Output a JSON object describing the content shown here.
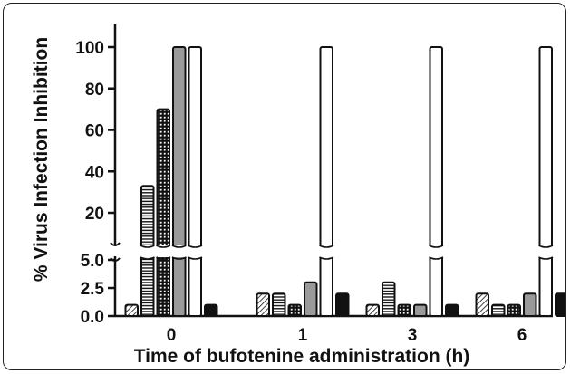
{
  "chart_data": {
    "type": "bar",
    "xlabel": "Time of bufotenine administration (h)",
    "ylabel": "% Virus Infection Inhibition",
    "categories": [
      "0",
      "1",
      "3",
      "6"
    ],
    "axis_break": {
      "lower": [
        0,
        5
      ],
      "upper": [
        5,
        110
      ]
    },
    "lower_ticks": [
      "0.0",
      "2.5",
      "5.0"
    ],
    "upper_ticks": [
      "20",
      "40",
      "60",
      "80",
      "100"
    ],
    "grid": false,
    "legend": "none",
    "series": [
      {
        "pattern": "diagonal-hatch",
        "values": [
          1,
          2,
          1,
          2
        ]
      },
      {
        "pattern": "horizontal-stripes",
        "values": [
          33,
          2,
          3,
          1
        ]
      },
      {
        "pattern": "dotted-dark",
        "values": [
          70,
          1,
          1,
          1
        ]
      },
      {
        "pattern": "gray",
        "values": [
          100,
          3,
          1,
          2
        ]
      },
      {
        "pattern": "white",
        "values": [
          100,
          100,
          100,
          100
        ]
      },
      {
        "pattern": "black",
        "values": [
          1,
          2,
          1,
          2
        ]
      }
    ]
  },
  "colors": {
    "gray_fill": "#9a9a9a",
    "black_fill": "#111111",
    "outline": "#111111"
  }
}
